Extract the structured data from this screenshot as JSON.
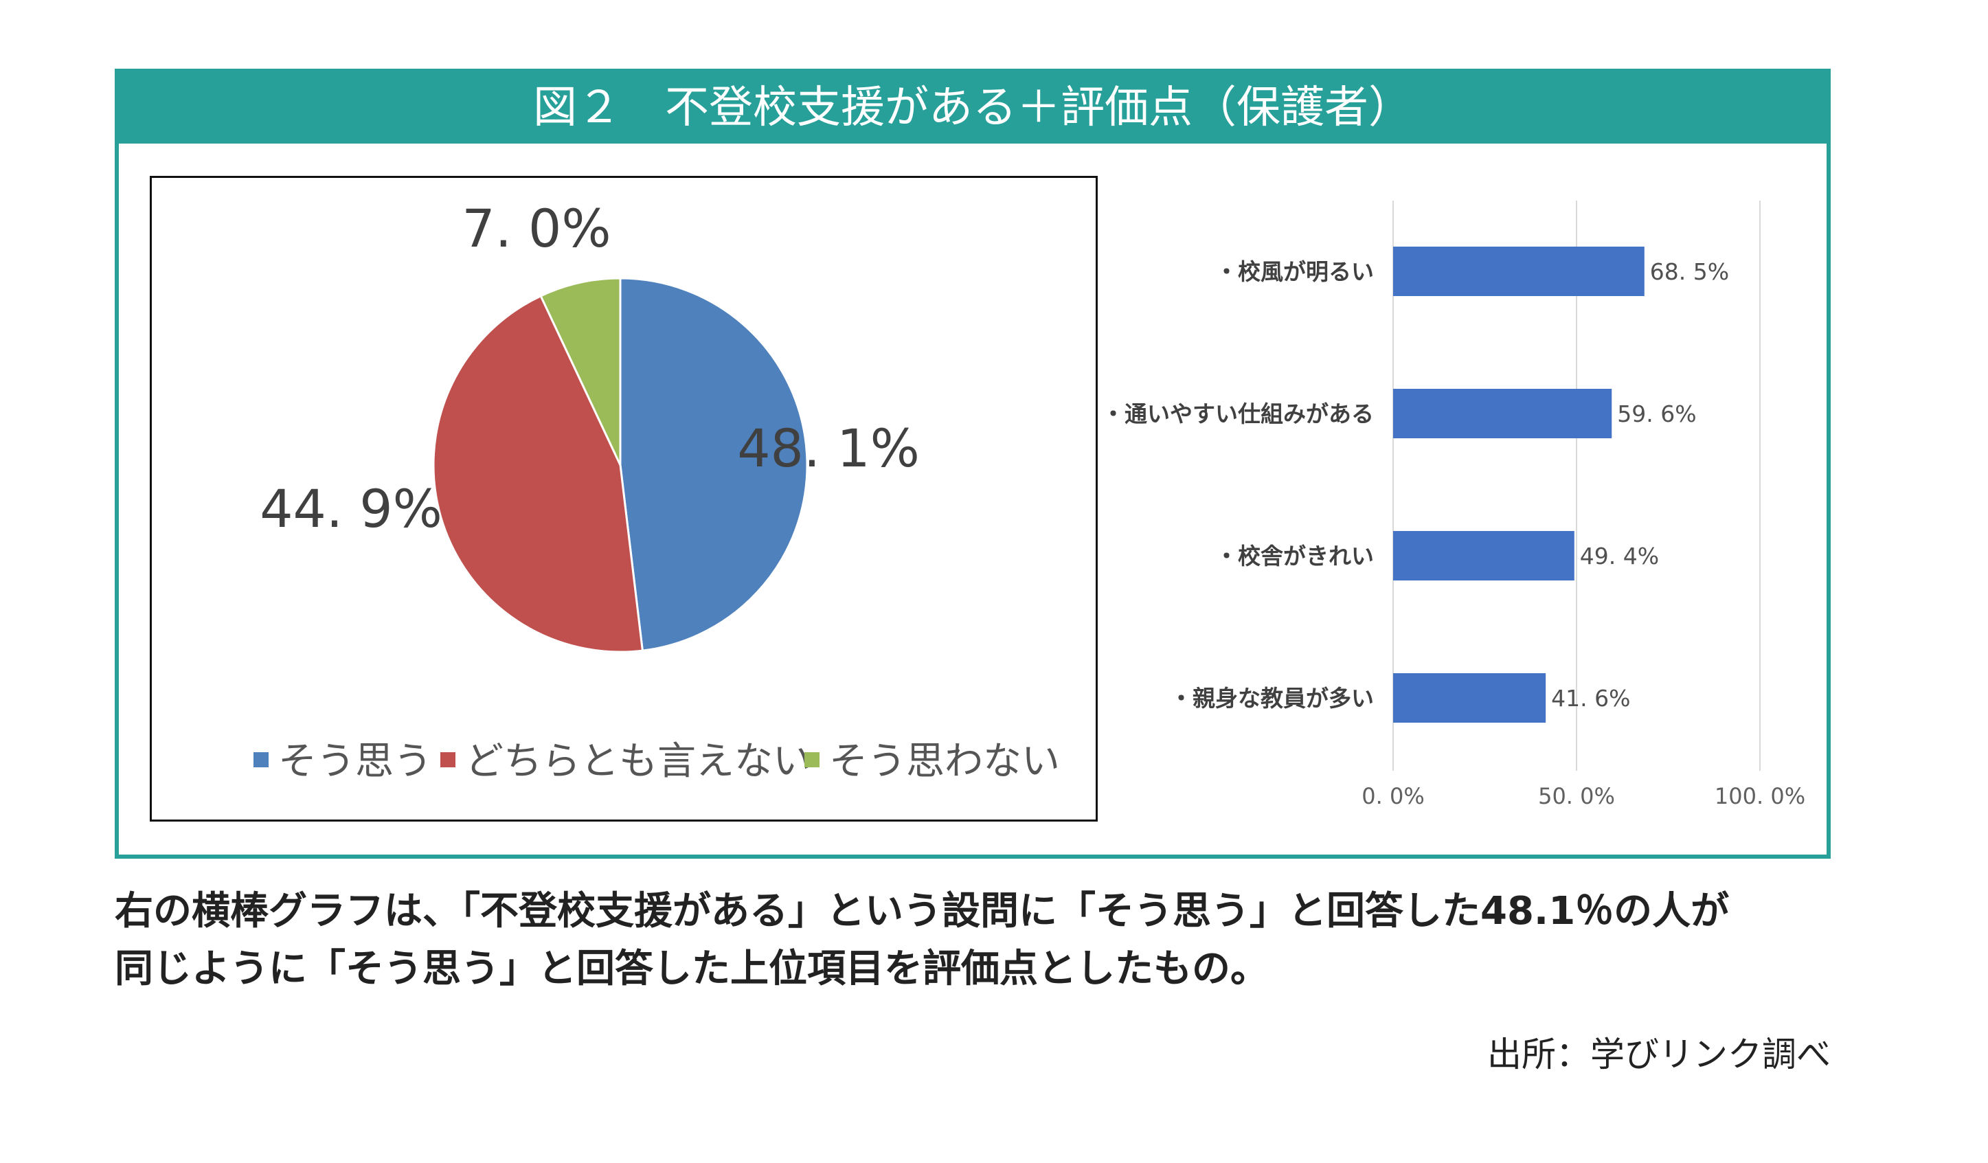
{
  "figure": {
    "title": "図２　不登校支援がある＋評価点（保護者）"
  },
  "chart_data": [
    {
      "type": "pie",
      "slices": [
        {
          "label": "そう思う",
          "value": 48.1,
          "display": "48. 1%",
          "color": "#4f81bd"
        },
        {
          "label": "どちらとも言えない",
          "value": 44.9,
          "display": "44. 9%",
          "color": "#c0504d"
        },
        {
          "label": "そう思わない",
          "value": 7.0,
          "display": "7. 0%",
          "color": "#9bbb59"
        }
      ],
      "legend_position": "bottom"
    },
    {
      "type": "bar",
      "orientation": "horizontal",
      "categories": [
        "・校風が明るい",
        "・通いやすい仕組みがある",
        "・校舎がきれい",
        "・親身な教員が多い"
      ],
      "values": [
        68.5,
        59.6,
        49.4,
        41.6
      ],
      "value_labels": [
        "68. 5%",
        "59. 6%",
        "49. 4%",
        "41. 6%"
      ],
      "xlim": [
        0,
        100
      ],
      "ticks": [
        {
          "value": 0,
          "label": "0. 0%"
        },
        {
          "value": 50,
          "label": "50. 0%"
        },
        {
          "value": 100,
          "label": "100. 0%"
        }
      ],
      "bar_color": "#4472c4",
      "grid": true
    }
  ],
  "caption": {
    "line1": "右の横棒グラフは、「不登校支援がある」という設問に「そう思う」と回答した48.1％の人が",
    "line2": "同じように「そう思う」と回答した上位項目を評価点としたもの。"
  },
  "source": "出所：学びリンク調べ"
}
